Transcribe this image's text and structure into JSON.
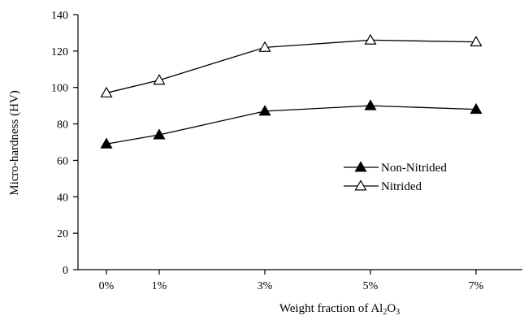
{
  "chart_data": {
    "type": "line",
    "title": "",
    "xlabel": "Weight fraction of Al2O3",
    "xlabel_parts": {
      "main": "Weight fraction of Al",
      "sub1": "2",
      "mid": "O",
      "sub2": "3"
    },
    "ylabel": "Micro-hardness (HV)",
    "categories": [
      "0%",
      "1%",
      "3%",
      "5%",
      "7%"
    ],
    "x": [
      0,
      1,
      3,
      5,
      7
    ],
    "xlim": [
      -1,
      7.5
    ],
    "ylim": [
      0,
      140
    ],
    "yticks": [
      "0",
      "20",
      "40",
      "60",
      "80",
      "100",
      "120",
      "140"
    ],
    "grid": false,
    "legend_position": "center-right",
    "series": [
      {
        "name": "Non-Nitrided",
        "marker": "filled-triangle",
        "color": "#000000",
        "values": [
          69,
          74,
          87,
          90,
          88
        ]
      },
      {
        "name": "Nitrided",
        "marker": "open-triangle",
        "color": "#000000",
        "values": [
          97,
          104,
          122,
          126,
          125
        ]
      }
    ]
  }
}
